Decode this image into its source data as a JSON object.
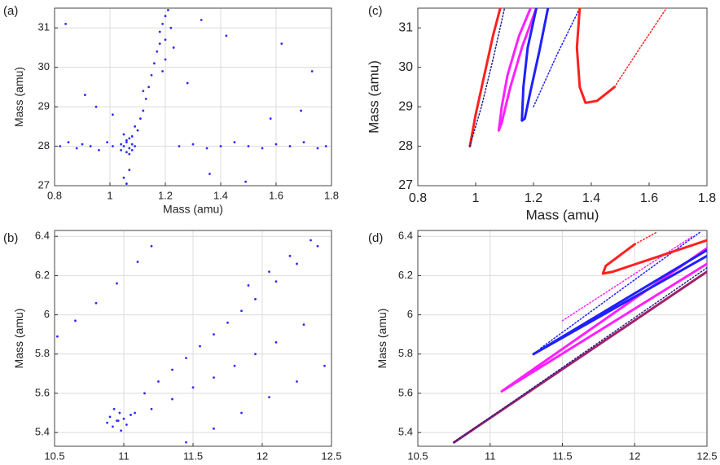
{
  "chart_data": [
    {
      "type": "scatter",
      "label": "(a)",
      "xlabel": "Mass (amu)",
      "ylabel": "Mass (amu)",
      "xlim": [
        0.8,
        1.8
      ],
      "ylim": [
        27,
        31.5
      ],
      "xticks": [
        0.8,
        1,
        1.2,
        1.4,
        1.6,
        1.8
      ],
      "yticks": [
        27,
        28,
        29,
        30,
        31
      ],
      "grid": true,
      "series": [
        {
          "color": "#2b2bff",
          "x": [
            0.82,
            0.85,
            0.88,
            0.9,
            0.93,
            0.96,
            0.99,
            1.01,
            1.25,
            1.3,
            1.35,
            1.4,
            1.45,
            1.5,
            1.55,
            1.6,
            1.65,
            1.7,
            1.75,
            1.78,
            1.04,
            1.05,
            1.06,
            1.06,
            1.07,
            1.07,
            1.08,
            1.08,
            1.09,
            1.05,
            1.06,
            1.07,
            1.08,
            1.1,
            1.04,
            1.09,
            1.11,
            1.12,
            1.13,
            1.14,
            1.15,
            1.16,
            1.17,
            1.18,
            1.18,
            1.19,
            1.2,
            1.2,
            1.21,
            1.2,
            1.19,
            1.22,
            1.23,
            1.05,
            1.06,
            1.07,
            0.84,
            0.91,
            1.28,
            1.42,
            1.58,
            1.73,
            1.62,
            0.95,
            1.33,
            1.49,
            1.69,
            1.12,
            1.01,
            1.36
          ],
          "y": [
            28.0,
            28.1,
            27.95,
            28.05,
            28.0,
            27.9,
            28.1,
            28.0,
            28.0,
            28.05,
            27.95,
            28.0,
            28.1,
            28.0,
            27.95,
            28.05,
            28.0,
            28.1,
            27.95,
            28.0,
            27.9,
            28.0,
            28.1,
            27.85,
            27.95,
            28.2,
            28.05,
            27.9,
            28.0,
            28.3,
            28.15,
            27.8,
            28.25,
            28.4,
            28.05,
            28.5,
            28.7,
            28.9,
            29.2,
            29.5,
            29.8,
            30.1,
            30.4,
            30.6,
            30.9,
            31.1,
            31.3,
            30.7,
            31.45,
            30.2,
            29.9,
            31.0,
            30.5,
            27.2,
            27.05,
            27.4,
            31.1,
            29.3,
            29.6,
            30.8,
            28.7,
            29.9,
            30.6,
            29.0,
            31.2,
            27.1,
            28.9,
            29.4,
            28.8,
            27.3
          ]
        }
      ]
    },
    {
      "type": "scatter",
      "label": "(b)",
      "xlabel": "Mass (amu)",
      "ylabel": "Mass (amu)",
      "xlim": [
        10.5,
        12.5
      ],
      "ylim": [
        5.33,
        6.43
      ],
      "xticks": [
        10.5,
        11,
        11.5,
        12,
        12.5
      ],
      "yticks": [
        5.4,
        5.6,
        5.8,
        6,
        6.2,
        6.4
      ],
      "grid": true,
      "series": [
        {
          "color": "#2b2bff",
          "x": [
            10.88,
            10.9,
            10.92,
            10.95,
            10.97,
            11.0,
            11.02,
            11.05,
            10.93,
            10.98,
            11.08,
            10.96,
            11.15,
            11.25,
            11.35,
            11.45,
            11.55,
            11.65,
            11.75,
            11.85,
            11.95,
            12.1,
            12.25,
            12.4,
            11.2,
            11.35,
            11.5,
            11.65,
            11.8,
            11.95,
            12.1,
            12.3,
            10.52,
            10.65,
            10.8,
            10.95,
            11.1,
            11.2,
            11.45,
            11.65,
            11.85,
            12.05,
            12.25,
            12.45,
            11.9,
            12.05,
            12.2,
            12.35,
            12.48
          ],
          "y": [
            5.45,
            5.48,
            5.43,
            5.46,
            5.5,
            5.47,
            5.44,
            5.49,
            5.52,
            5.41,
            5.5,
            5.46,
            5.6,
            5.66,
            5.72,
            5.78,
            5.84,
            5.9,
            5.96,
            6.02,
            6.08,
            6.17,
            6.26,
            6.35,
            5.52,
            5.57,
            5.63,
            5.68,
            5.74,
            5.8,
            5.86,
            5.95,
            5.89,
            5.97,
            6.06,
            6.16,
            6.27,
            6.35,
            5.35,
            5.42,
            5.5,
            5.58,
            5.66,
            5.74,
            6.15,
            6.22,
            6.3,
            6.38,
            6.45
          ]
        }
      ]
    },
    {
      "type": "line",
      "label": "(c)",
      "xlabel": "Mass (amu)",
      "ylabel": "Mass (amu)",
      "xlim": [
        0.8,
        1.8
      ],
      "ylim": [
        27,
        31.5
      ],
      "xticks": [
        0.8,
        1,
        1.2,
        1.4,
        1.6,
        1.8
      ],
      "yticks": [
        27,
        28,
        29,
        30,
        31
      ],
      "grid": false,
      "series": [
        {
          "color": "#ff2020",
          "style": "solid",
          "x": [
            0.98,
            1.0,
            1.03,
            1.06,
            1.085
          ],
          "y": [
            28.0,
            28.8,
            29.8,
            30.8,
            31.5
          ]
        },
        {
          "color": "#20208a",
          "style": "dotted",
          "x": [
            0.98,
            1.02,
            1.06,
            1.1
          ],
          "y": [
            28.0,
            29.0,
            30.2,
            31.5
          ]
        },
        {
          "color": "#ff20ff",
          "style": "solid",
          "x": [
            1.19,
            1.15,
            1.11,
            1.09,
            1.08,
            1.09,
            1.12,
            1.16,
            1.21
          ],
          "y": [
            31.5,
            30.8,
            29.8,
            29.0,
            28.4,
            28.6,
            29.5,
            30.5,
            31.5
          ]
        },
        {
          "color": "#2020ff",
          "style": "solid",
          "x": [
            1.21,
            1.18,
            1.165,
            1.16,
            1.17,
            1.19,
            1.22,
            1.25
          ],
          "y": [
            31.5,
            30.5,
            29.5,
            28.65,
            28.7,
            29.4,
            30.4,
            31.5
          ]
        },
        {
          "color": "#2020ff",
          "style": "dotted",
          "x": [
            1.2,
            1.28,
            1.36
          ],
          "y": [
            29.0,
            30.3,
            31.5
          ]
        },
        {
          "color": "#ff2020",
          "style": "solid",
          "x": [
            1.36,
            1.35,
            1.36,
            1.38,
            1.42,
            1.48
          ],
          "y": [
            31.5,
            30.5,
            29.5,
            29.1,
            29.15,
            29.5
          ]
        },
        {
          "color": "#ff2020",
          "style": "dotted",
          "x": [
            1.48,
            1.56,
            1.66
          ],
          "y": [
            29.5,
            30.4,
            31.5
          ]
        }
      ]
    },
    {
      "type": "line",
      "label": "(d)",
      "xlabel": "Mass (amu)",
      "ylabel": "Mass (amu)",
      "xlim": [
        10.5,
        12.5
      ],
      "ylim": [
        5.33,
        6.43
      ],
      "xticks": [
        10.5,
        11,
        11.5,
        12,
        12.5
      ],
      "yticks": [
        5.4,
        5.6,
        5.8,
        6,
        6.2,
        6.4
      ],
      "grid": true,
      "series": [
        {
          "color": "#a0206a",
          "style": "solid",
          "x": [
            10.75,
            12.5
          ],
          "y": [
            5.35,
            6.22
          ]
        },
        {
          "color": "#20208a",
          "style": "dotted",
          "x": [
            10.75,
            12.5
          ],
          "y": [
            5.35,
            6.24
          ]
        },
        {
          "color": "#ff20ff",
          "style": "solid",
          "x": [
            12.5,
            11.08,
            12.5
          ],
          "y": [
            6.26,
            5.61,
            6.34
          ]
        },
        {
          "color": "#ff20ff",
          "style": "dotted",
          "x": [
            11.5,
            12.4
          ],
          "y": [
            5.97,
            6.4
          ]
        },
        {
          "color": "#2020ff",
          "style": "solid",
          "x": [
            12.5,
            11.3,
            12.5
          ],
          "y": [
            6.3,
            5.8,
            6.33
          ]
        },
        {
          "color": "#2020ff",
          "style": "dotted",
          "x": [
            11.35,
            12.45
          ],
          "y": [
            5.83,
            6.42
          ]
        },
        {
          "color": "#ff2020",
          "style": "solid",
          "x": [
            12.0,
            11.8,
            11.78,
            11.85,
            12.5
          ],
          "y": [
            6.36,
            6.25,
            6.21,
            6.22,
            6.38
          ]
        },
        {
          "color": "#ff2020",
          "style": "dotted",
          "x": [
            12.0,
            12.15
          ],
          "y": [
            6.36,
            6.42
          ]
        }
      ]
    }
  ]
}
